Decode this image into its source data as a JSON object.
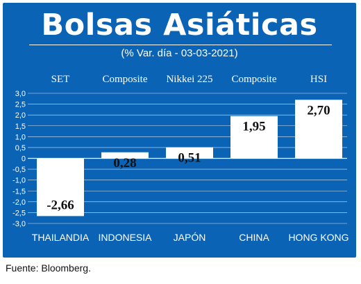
{
  "title": "Bolsas Asiáticas",
  "subtitle": "(% Var. día - 03-03-2021)",
  "source": "Fuente: Bloomberg.",
  "colors": {
    "background": "#0a63b4",
    "bar": "#ffffff",
    "text": "#ffffff",
    "value_text": "#111111"
  },
  "chart_data": {
    "type": "bar",
    "title": "Bolsas Asiáticas",
    "subtitle": "(% Var. día - 03-03-2021)",
    "categories": [
      "THAILANDIA",
      "INDONESIA",
      "JAPÓN",
      "CHINA",
      "HONG KONG"
    ],
    "index_names": [
      "SET",
      "Composite",
      "Nikkei 225",
      "Composite",
      "HSI"
    ],
    "values": [
      -2.66,
      0.28,
      0.51,
      1.95,
      2.7
    ],
    "value_labels": [
      "-2,66",
      "0,28",
      "0,51",
      "1,95",
      "2,70"
    ],
    "ylim": [
      -3.0,
      3.0
    ],
    "yticks": [
      "3,0",
      "2,5",
      "2,0",
      "1,5",
      "1,0",
      "0,5",
      "0",
      "-0,5",
      "-1,0",
      "-1,5",
      "-2,0",
      "-2,5",
      "-3,0"
    ],
    "ytick_values": [
      3.0,
      2.5,
      2.0,
      1.5,
      1.0,
      0.5,
      0,
      -0.5,
      -1.0,
      -1.5,
      -2.0,
      -2.5,
      -3.0
    ],
    "grid": true,
    "xlabel": "",
    "ylabel": ""
  }
}
